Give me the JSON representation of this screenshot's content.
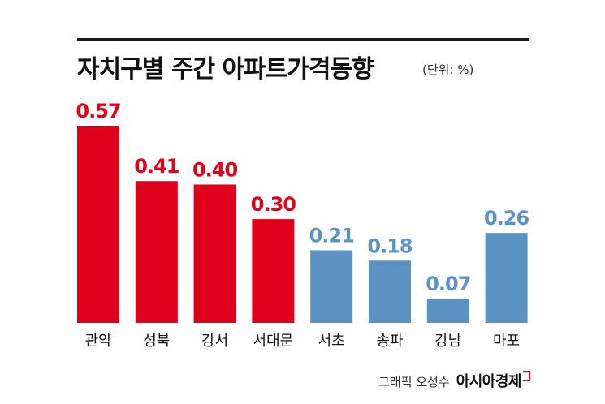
{
  "header": {
    "title": "자치구별 주간 아파트가격동향",
    "unit": "(단위: %)"
  },
  "credit": {
    "label": "그래픽 오성수",
    "brand": "아시아경제"
  },
  "colors": {
    "increase_high": "#e0001b",
    "increase_low": "#5b93c5",
    "text": "#111111"
  },
  "chart_data": {
    "type": "bar",
    "title": "자치구별 주간 아파트가격동향",
    "xlabel": "",
    "ylabel": "",
    "unit": "(단위: %)",
    "ylim": [
      0,
      0.6
    ],
    "grid": false,
    "categories": [
      "관악",
      "성북",
      "강서",
      "서대문",
      "서초",
      "송파",
      "강남",
      "마포"
    ],
    "values": [
      0.57,
      0.41,
      0.4,
      0.3,
      0.21,
      0.18,
      0.07,
      0.26
    ],
    "labels": [
      "0.57",
      "0.41",
      "0.40",
      "0.30",
      "0.21",
      "0.18",
      "0.07",
      "0.26"
    ],
    "bar_colors": [
      "#e0001b",
      "#e0001b",
      "#e0001b",
      "#e0001b",
      "#5b93c5",
      "#5b93c5",
      "#5b93c5",
      "#5b93c5"
    ]
  }
}
